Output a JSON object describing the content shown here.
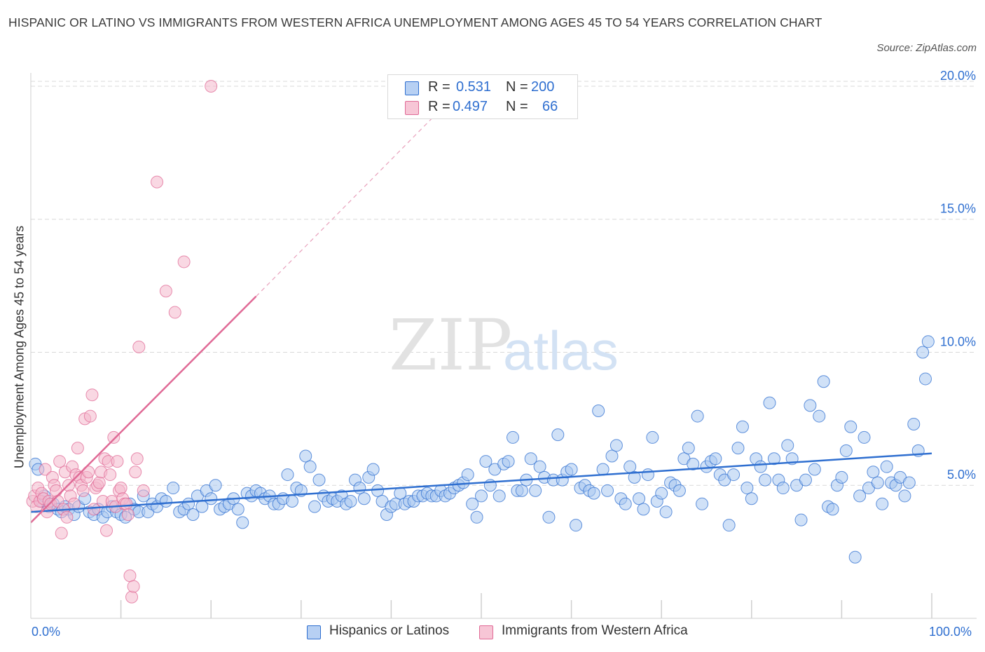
{
  "title": "HISPANIC OR LATINO VS IMMIGRANTS FROM WESTERN AFRICA UNEMPLOYMENT AMONG AGES 45 TO 54 YEARS CORRELATION CHART",
  "source": "Source: ZipAtlas.com",
  "legend_top": {
    "rows": [
      {
        "r_label": "R =",
        "r_value": "0.531",
        "n_label": "N =",
        "n_value": "200"
      },
      {
        "r_label": "R =",
        "r_value": "0.497",
        "n_label": "N =",
        "n_value": "66"
      }
    ]
  },
  "legend_bottom": {
    "items": [
      "Hispanics or Latinos",
      "Immigrants from Western Africa"
    ]
  },
  "watermark": {
    "zip": "ZIP",
    "atlas": "atlas"
  },
  "colors": {
    "blue": "#2f6fd0",
    "blue_fill": "#a9c8f0",
    "pink": "#e06a96",
    "pink_fill": "#f4b8cc",
    "grid": "#d9d9d9"
  },
  "chart_data": {
    "type": "scatter",
    "title": "HISPANIC OR LATINO VS IMMIGRANTS FROM WESTERN AFRICA UNEMPLOYMENT AMONG AGES 45 TO 54 YEARS CORRELATION CHART",
    "xlabel": "",
    "ylabel": "Unemployment Among Ages 45 to 54 years",
    "xlim": [
      0,
      100
    ],
    "ylim": [
      0,
      20.5
    ],
    "x_tick_labels": [
      "0.0%",
      "100.0%"
    ],
    "y_ticks": [
      5,
      10,
      15,
      20
    ],
    "y_tick_labels": [
      "5.0%",
      "10.0%",
      "15.0%",
      "20.0%"
    ],
    "grid": true,
    "legend_position": "top-center",
    "series": [
      {
        "name": "Hispanics or Latinos",
        "color": "#2f6fd0",
        "trend": {
          "x": [
            0,
            100
          ],
          "y": [
            4.0,
            6.2
          ]
        },
        "points": [
          [
            0.5,
            5.8
          ],
          [
            0.8,
            5.6
          ],
          [
            1.2,
            4.4
          ],
          [
            1.5,
            4.6
          ],
          [
            2.0,
            4.2
          ],
          [
            2.5,
            4.3
          ],
          [
            3.0,
            4.1
          ],
          [
            3.4,
            4.0
          ],
          [
            3.8,
            4.2
          ],
          [
            4.2,
            4.1
          ],
          [
            4.8,
            3.9
          ],
          [
            5.3,
            4.2
          ],
          [
            6.0,
            4.5
          ],
          [
            6.5,
            4.0
          ],
          [
            7.0,
            3.9
          ],
          [
            7.5,
            4.1
          ],
          [
            8.0,
            3.8
          ],
          [
            8.5,
            4.0
          ],
          [
            9.0,
            4.2
          ],
          [
            9.5,
            4.0
          ],
          [
            10.0,
            3.9
          ],
          [
            10.5,
            3.8
          ],
          [
            11.0,
            4.3
          ],
          [
            11.5,
            4.1
          ],
          [
            12.0,
            4.0
          ],
          [
            12.5,
            4.6
          ],
          [
            13.0,
            4.0
          ],
          [
            13.5,
            4.3
          ],
          [
            14.0,
            4.2
          ],
          [
            14.5,
            4.5
          ],
          [
            15.0,
            4.4
          ],
          [
            15.8,
            4.9
          ],
          [
            16.5,
            4.0
          ],
          [
            17.0,
            4.1
          ],
          [
            17.5,
            4.3
          ],
          [
            18.0,
            3.9
          ],
          [
            18.5,
            4.6
          ],
          [
            19.0,
            4.2
          ],
          [
            19.5,
            4.8
          ],
          [
            20.0,
            4.5
          ],
          [
            20.5,
            5.0
          ],
          [
            21.0,
            4.1
          ],
          [
            21.5,
            4.2
          ],
          [
            22.0,
            4.3
          ],
          [
            22.5,
            4.5
          ],
          [
            23.0,
            4.1
          ],
          [
            23.5,
            3.6
          ],
          [
            24.0,
            4.7
          ],
          [
            24.5,
            4.6
          ],
          [
            25.0,
            4.8
          ],
          [
            25.5,
            4.7
          ],
          [
            26.0,
            4.5
          ],
          [
            26.5,
            4.6
          ],
          [
            27.0,
            4.3
          ],
          [
            27.5,
            4.3
          ],
          [
            28.0,
            4.5
          ],
          [
            28.5,
            5.4
          ],
          [
            29.0,
            4.4
          ],
          [
            29.5,
            4.9
          ],
          [
            30.0,
            4.8
          ],
          [
            30.5,
            6.1
          ],
          [
            31.0,
            5.7
          ],
          [
            31.5,
            4.2
          ],
          [
            32.0,
            5.2
          ],
          [
            32.5,
            4.6
          ],
          [
            33.0,
            4.4
          ],
          [
            33.5,
            4.5
          ],
          [
            34.0,
            4.4
          ],
          [
            34.5,
            4.6
          ],
          [
            35.0,
            4.3
          ],
          [
            35.5,
            4.4
          ],
          [
            36.0,
            5.2
          ],
          [
            36.5,
            4.9
          ],
          [
            37.0,
            4.5
          ],
          [
            37.5,
            5.3
          ],
          [
            38.0,
            5.6
          ],
          [
            38.5,
            4.8
          ],
          [
            39.0,
            4.4
          ],
          [
            39.5,
            3.9
          ],
          [
            40.0,
            4.2
          ],
          [
            40.5,
            4.3
          ],
          [
            41.0,
            4.7
          ],
          [
            41.5,
            4.3
          ],
          [
            42.0,
            4.4
          ],
          [
            42.5,
            4.4
          ],
          [
            43.0,
            4.6
          ],
          [
            43.5,
            4.6
          ],
          [
            44.0,
            4.7
          ],
          [
            44.5,
            4.6
          ],
          [
            45.0,
            4.6
          ],
          [
            45.5,
            4.8
          ],
          [
            46.0,
            4.6
          ],
          [
            46.5,
            4.7
          ],
          [
            47.0,
            4.9
          ],
          [
            47.5,
            5.0
          ],
          [
            48.0,
            5.1
          ],
          [
            48.5,
            5.4
          ],
          [
            49.0,
            4.3
          ],
          [
            49.5,
            3.8
          ],
          [
            50.0,
            4.6
          ],
          [
            50.5,
            5.9
          ],
          [
            51.0,
            5.0
          ],
          [
            51.5,
            5.6
          ],
          [
            52.0,
            4.6
          ],
          [
            52.5,
            5.8
          ],
          [
            53.0,
            5.9
          ],
          [
            53.5,
            6.8
          ],
          [
            54.0,
            4.8
          ],
          [
            54.5,
            4.8
          ],
          [
            55.0,
            5.2
          ],
          [
            55.5,
            6.0
          ],
          [
            56.0,
            4.8
          ],
          [
            56.5,
            5.7
          ],
          [
            57.0,
            5.3
          ],
          [
            57.5,
            3.8
          ],
          [
            58.0,
            5.2
          ],
          [
            58.5,
            6.9
          ],
          [
            59.0,
            5.2
          ],
          [
            59.5,
            5.5
          ],
          [
            60.0,
            5.6
          ],
          [
            60.5,
            3.5
          ],
          [
            61.0,
            4.9
          ],
          [
            61.5,
            5.0
          ],
          [
            62.0,
            4.8
          ],
          [
            62.5,
            4.7
          ],
          [
            63.0,
            7.8
          ],
          [
            63.5,
            5.6
          ],
          [
            64.0,
            4.8
          ],
          [
            64.5,
            6.1
          ],
          [
            65.0,
            6.5
          ],
          [
            65.5,
            4.5
          ],
          [
            66.0,
            4.3
          ],
          [
            66.5,
            5.7
          ],
          [
            67.0,
            5.3
          ],
          [
            67.5,
            4.5
          ],
          [
            68.0,
            4.1
          ],
          [
            68.5,
            5.4
          ],
          [
            69.0,
            6.8
          ],
          [
            69.5,
            4.4
          ],
          [
            70.0,
            4.7
          ],
          [
            70.5,
            4.0
          ],
          [
            71.0,
            5.1
          ],
          [
            71.5,
            5.0
          ],
          [
            72.0,
            4.8
          ],
          [
            72.5,
            6.0
          ],
          [
            73.0,
            6.4
          ],
          [
            73.5,
            5.8
          ],
          [
            74.0,
            7.6
          ],
          [
            74.5,
            4.3
          ],
          [
            75.0,
            5.7
          ],
          [
            75.5,
            5.9
          ],
          [
            76.0,
            6.0
          ],
          [
            76.5,
            5.4
          ],
          [
            77.0,
            5.2
          ],
          [
            77.5,
            3.5
          ],
          [
            78.0,
            5.4
          ],
          [
            78.5,
            6.4
          ],
          [
            79.0,
            7.2
          ],
          [
            79.5,
            4.9
          ],
          [
            80.0,
            4.5
          ],
          [
            80.5,
            6.0
          ],
          [
            81.0,
            5.7
          ],
          [
            81.5,
            5.2
          ],
          [
            82.0,
            8.1
          ],
          [
            82.5,
            6.0
          ],
          [
            83.0,
            5.2
          ],
          [
            83.5,
            4.9
          ],
          [
            84.0,
            6.5
          ],
          [
            84.5,
            6.0
          ],
          [
            85.0,
            5.0
          ],
          [
            85.5,
            3.7
          ],
          [
            86.0,
            5.2
          ],
          [
            86.5,
            8.0
          ],
          [
            87.0,
            5.6
          ],
          [
            87.5,
            7.6
          ],
          [
            88.0,
            8.9
          ],
          [
            88.5,
            4.2
          ],
          [
            89.0,
            4.1
          ],
          [
            89.5,
            5.0
          ],
          [
            90.0,
            5.3
          ],
          [
            90.5,
            6.3
          ],
          [
            91.0,
            7.2
          ],
          [
            91.5,
            2.3
          ],
          [
            92.0,
            4.6
          ],
          [
            92.5,
            6.8
          ],
          [
            93.0,
            4.9
          ],
          [
            93.5,
            5.5
          ],
          [
            94.0,
            5.1
          ],
          [
            94.5,
            4.3
          ],
          [
            95.0,
            5.7
          ],
          [
            95.5,
            5.1
          ],
          [
            96.0,
            5.0
          ],
          [
            96.5,
            5.3
          ],
          [
            97.0,
            4.6
          ],
          [
            97.5,
            5.1
          ],
          [
            98.0,
            7.3
          ],
          [
            98.5,
            6.3
          ],
          [
            99.0,
            10.0
          ],
          [
            99.3,
            9.0
          ],
          [
            99.6,
            10.4
          ]
        ]
      },
      {
        "name": "Immigrants from Western Africa",
        "color": "#e06a96",
        "trend": {
          "x": [
            0,
            25
          ],
          "y": [
            3.6,
            12.1
          ]
        },
        "trend_dashed": {
          "x": [
            25,
            46
          ],
          "y": [
            12.1,
            19.3
          ]
        },
        "points": [
          [
            0.2,
            4.4
          ],
          [
            0.4,
            4.6
          ],
          [
            0.6,
            4.2
          ],
          [
            0.8,
            4.9
          ],
          [
            1.0,
            4.4
          ],
          [
            1.2,
            4.7
          ],
          [
            1.4,
            4.5
          ],
          [
            1.6,
            5.6
          ],
          [
            1.8,
            4.0
          ],
          [
            2.0,
            4.4
          ],
          [
            2.2,
            4.3
          ],
          [
            2.4,
            5.3
          ],
          [
            2.6,
            5.0
          ],
          [
            2.8,
            4.8
          ],
          [
            3.0,
            4.4
          ],
          [
            3.2,
            5.9
          ],
          [
            3.4,
            3.2
          ],
          [
            3.6,
            4.1
          ],
          [
            3.8,
            5.5
          ],
          [
            4.0,
            3.8
          ],
          [
            4.2,
            5.0
          ],
          [
            4.4,
            4.6
          ],
          [
            4.6,
            5.7
          ],
          [
            4.8,
            4.3
          ],
          [
            5.0,
            5.4
          ],
          [
            5.2,
            6.4
          ],
          [
            5.4,
            5.3
          ],
          [
            5.6,
            5.0
          ],
          [
            5.8,
            4.8
          ],
          [
            6.0,
            7.5
          ],
          [
            6.2,
            5.3
          ],
          [
            6.4,
            5.5
          ],
          [
            6.6,
            7.6
          ],
          [
            6.8,
            8.4
          ],
          [
            7.0,
            4.1
          ],
          [
            7.2,
            4.9
          ],
          [
            7.4,
            5.0
          ],
          [
            7.6,
            5.1
          ],
          [
            7.8,
            5.5
          ],
          [
            8.0,
            4.4
          ],
          [
            8.2,
            6.0
          ],
          [
            8.4,
            3.3
          ],
          [
            8.6,
            5.9
          ],
          [
            8.8,
            5.4
          ],
          [
            9.0,
            4.4
          ],
          [
            9.2,
            6.8
          ],
          [
            9.4,
            4.2
          ],
          [
            9.6,
            5.9
          ],
          [
            9.8,
            4.8
          ],
          [
            10.0,
            4.9
          ],
          [
            10.2,
            4.5
          ],
          [
            10.4,
            4.3
          ],
          [
            10.6,
            4.3
          ],
          [
            10.8,
            3.9
          ],
          [
            11.0,
            1.6
          ],
          [
            11.2,
            0.8
          ],
          [
            11.4,
            1.2
          ],
          [
            11.6,
            5.5
          ],
          [
            11.8,
            6.0
          ],
          [
            12.0,
            10.2
          ],
          [
            12.5,
            4.8
          ],
          [
            14.0,
            16.4
          ],
          [
            15.0,
            12.3
          ],
          [
            16.0,
            11.5
          ],
          [
            17.0,
            13.4
          ],
          [
            20.0,
            20.0
          ]
        ]
      }
    ]
  }
}
